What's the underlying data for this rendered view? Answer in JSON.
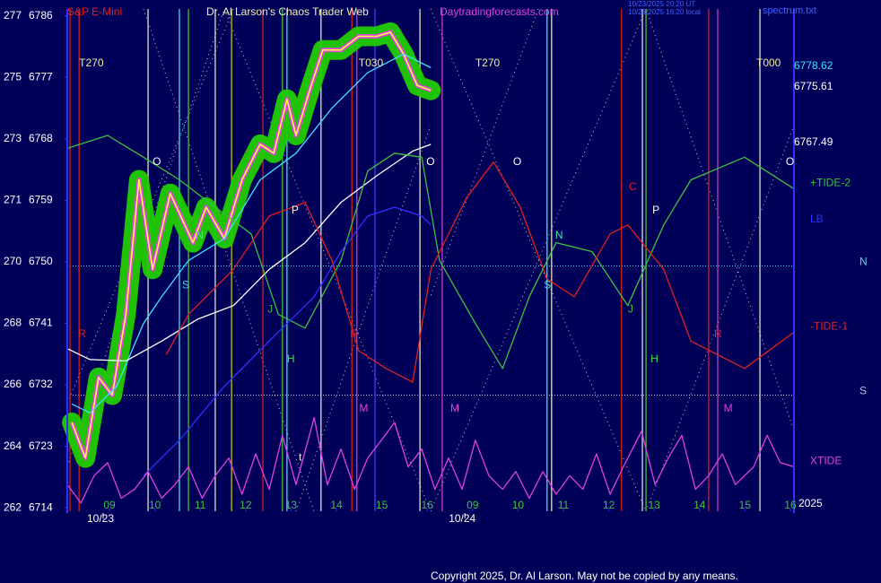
{
  "chart_data": {
    "type": "line",
    "instrument": "S&P E-Mini",
    "title": "Dr. Al Larson's Chaos Trader Web",
    "website": "Daytradingforecasts.com",
    "timestamps": [
      "10/23/2025 20:20 UT",
      "10/23/2025 16:20 local"
    ],
    "file": "spectrum.txt",
    "year": "2025",
    "copyright": "Copyright 2025, Dr. Al Larson. May not be copied by any means.",
    "ylim": [
      6713.5,
      6787
    ],
    "yticks": [
      6714,
      6723,
      6732,
      6741,
      6750,
      6759,
      6768,
      6777,
      6786
    ],
    "y_alt_labels": [
      "262",
      "264",
      "266",
      "268",
      "270",
      "271",
      "273",
      "275",
      "277"
    ],
    "xlim": [
      -9.3,
      150.8
    ],
    "xticks": [
      {
        "value": 0,
        "label": "09"
      },
      {
        "value": 10,
        "label": "10"
      },
      {
        "value": 20,
        "label": "11"
      },
      {
        "value": 30,
        "label": "12"
      },
      {
        "value": 40,
        "label": "13"
      },
      {
        "value": 50,
        "label": "14"
      },
      {
        "value": 60,
        "label": "15"
      },
      {
        "value": 70,
        "label": "16"
      },
      {
        "value": 80,
        "label": "09"
      },
      {
        "value": 90,
        "label": "10"
      },
      {
        "value": 100,
        "label": "11"
      },
      {
        "value": 110,
        "label": "12"
      },
      {
        "value": 120,
        "label": "13"
      },
      {
        "value": 130,
        "label": "14"
      },
      {
        "value": 140,
        "label": "15"
      },
      {
        "value": 150,
        "label": "16"
      }
    ],
    "date_labels": [
      {
        "text": "10/23",
        "x": -1.4
      },
      {
        "text": "10/24",
        "x": 78.3
      }
    ],
    "series": [
      {
        "color": "#ffff40",
        "glow": "#22cc00",
        "x": [
          -8.3,
          -5.3,
          -2.4,
          0.6,
          3.6,
          6.5,
          9.5,
          13.4,
          18.4,
          21.3,
          25.3,
          29.2,
          33.2,
          36.2,
          39.1,
          41.1,
          44.1,
          47.0,
          51.0,
          54.9,
          58.9,
          61.9,
          64.8,
          67.8,
          70.8
        ],
        "values": [
          6726.5,
          6721.3,
          6733.1,
          6730.5,
          6742.3,
          6762.0,
          6748.9,
          6760.0,
          6752.8,
          6758.0,
          6753.4,
          6762.0,
          6767.2,
          6765.9,
          6773.8,
          6768.5,
          6775.1,
          6781.0,
          6781.0,
          6783.0,
          6783.0,
          6783.6,
          6780.4,
          6775.8,
          6775.1
        ]
      },
      {
        "color": "#40e0ff",
        "x": [
          -8.3,
          -4.3,
          1.6,
          7.5,
          11.5,
          17.4,
          25.3,
          33.2,
          41.1,
          49.0,
          56.9,
          64.8,
          70.8
        ],
        "values": [
          6729.2,
          6727.9,
          6731.8,
          6741.0,
          6744.9,
          6750.2,
          6753.4,
          6762.0,
          6765.9,
          6772.5,
          6777.7,
          6780.4,
          6778.4
        ]
      },
      {
        "color": "#ffffff",
        "x": [
          -9.3,
          -4.3,
          3.6,
          11.5,
          19.4,
          27.3,
          35.2,
          43.1,
          51.0,
          58.9,
          66.8,
          70.8
        ],
        "values": [
          6737.3,
          6735.7,
          6735.5,
          6738.4,
          6741.6,
          6743.6,
          6748.9,
          6752.8,
          6758.7,
          6762.6,
          6766.2,
          6767.2
        ]
      },
      {
        "name": "+TIDE-2",
        "color": "#40c040",
        "x": [
          -9.3,
          -0.4,
          7.5,
          15.4,
          23.3,
          31.2,
          37.2,
          43.1,
          51.0,
          56.9,
          62.8,
          68.8,
          72.7,
          80.6,
          86.6,
          92.5,
          98.4,
          106.3,
          114.2,
          122.1,
          128.1,
          139.9,
          150.8
        ],
        "values": [
          6766.6,
          6768.5,
          6765.3,
          6762.0,
          6758.0,
          6754.1,
          6742.3,
          6740.3,
          6750.2,
          6763.3,
          6765.9,
          6765.3,
          6750.2,
          6741.0,
          6734.4,
          6744.9,
          6752.8,
          6751.5,
          6743.6,
          6755.4,
          6762.0,
          6765.3,
          6760.7
        ]
      },
      {
        "name": "LB",
        "color": "#3030ff",
        "x": [
          7.5,
          15.4,
          25.3,
          35.2,
          45.1,
          51.0,
          56.9,
          62.8,
          68.8,
          70.8
        ],
        "values": [
          6718.7,
          6723.9,
          6731.8,
          6738.4,
          6744.9,
          6751.5,
          6756.7,
          6758.0,
          6756.7,
          6755.4
        ]
      },
      {
        "name": "-TIDE-1",
        "color": "#e02020",
        "x": [
          12.5,
          17.4,
          27.3,
          35.2,
          43.1,
          49.0,
          54.9,
          60.9,
          66.8,
          70.8,
          78.7,
          84.6,
          90.5,
          96.4,
          102.4,
          110.3,
          114.2,
          122.1,
          128.1,
          134.0,
          139.9,
          150.8
        ],
        "values": [
          6736.4,
          6742.3,
          6748.9,
          6756.7,
          6758.7,
          6750.2,
          6737.0,
          6734.4,
          6732.4,
          6748.9,
          6759.4,
          6764.6,
          6758.0,
          6747.5,
          6744.9,
          6754.1,
          6755.4,
          6748.9,
          6738.4,
          6736.4,
          6734.4,
          6739.7
        ]
      },
      {
        "name": "XTIDE",
        "color": "#e040e0",
        "x": [
          -9.3,
          -6.3,
          -3.4,
          -0.4,
          2.6,
          5.5,
          8.5,
          11.5,
          14.4,
          17.4,
          20.4,
          23.3,
          26.3,
          29.2,
          32.2,
          35.2,
          38.1,
          41.1,
          45.1,
          48.0,
          51.0,
          54.0,
          56.9,
          59.9,
          62.8,
          65.8,
          68.8,
          71.7,
          74.7,
          77.7,
          80.6,
          83.6,
          86.6,
          89.5,
          92.5,
          95.5,
          98.4,
          101.4,
          104.3,
          107.3,
          110.3,
          113.2,
          117.2,
          120.2,
          123.1,
          126.1,
          129.1,
          132.0,
          135.0,
          137.9,
          141.9,
          144.9,
          147.8,
          150.8
        ],
        "values": [
          6717.4,
          6714.7,
          6718.7,
          6720.6,
          6715.4,
          6716.7,
          6719.3,
          6715.4,
          6717.4,
          6720.0,
          6715.4,
          6718.7,
          6721.3,
          6716.0,
          6721.9,
          6716.7,
          6724.6,
          6717.4,
          6727.2,
          6717.4,
          6722.6,
          6716.7,
          6721.3,
          6723.9,
          6726.5,
          6720.0,
          6722.6,
          6716.7,
          6721.3,
          6716.7,
          6723.9,
          6718.7,
          6716.7,
          6719.3,
          6715.4,
          6719.3,
          6716.0,
          6718.7,
          6716.7,
          6721.9,
          6716.0,
          6720.0,
          6725.2,
          6717.4,
          6721.3,
          6724.6,
          6716.7,
          6718.7,
          6721.9,
          6717.4,
          6720.0,
          6724.6,
          6720.6,
          6720.0
        ]
      }
    ],
    "hlines": [
      {
        "name": "N",
        "value": 6749.4,
        "color": "#40e0e0"
      },
      {
        "name": "S",
        "value": 6730.5,
        "color": "#c0c0e0"
      }
    ],
    "last_values": [
      {
        "value": 6778.62,
        "color": "#40e0ff"
      },
      {
        "value": 6775.61,
        "color": "#ffffff"
      },
      {
        "value": 6767.49,
        "color": "#ffffff"
      }
    ],
    "vlines": [
      {
        "x": -8.7,
        "color": "#d02020"
      },
      {
        "x": -6.7,
        "color": "#d02020"
      },
      {
        "x": 8.5,
        "color": "#e0e0c0"
      },
      {
        "x": 15.4,
        "color": "#40e0e0"
      },
      {
        "x": 17.4,
        "color": "#40c040"
      },
      {
        "x": 23.3,
        "color": "#e0e0c0"
      },
      {
        "x": 26.9,
        "color": "#c0c000"
      },
      {
        "x": 33.8,
        "color": "#d02020"
      },
      {
        "x": 38.1,
        "color": "#40c040"
      },
      {
        "x": 39.1,
        "color": "#40e0e0"
      },
      {
        "x": 46.6,
        "color": "#e0e0c0"
      },
      {
        "x": 53.4,
        "color": "#d02020"
      },
      {
        "x": 54.5,
        "color": "#c040c0"
      },
      {
        "x": 58.5,
        "color": "#4040ff"
      },
      {
        "x": 68.4,
        "color": "#e0e0c0"
      },
      {
        "x": 73.3,
        "color": "#c040c0"
      },
      {
        "x": 96.4,
        "color": "#40e0e0"
      },
      {
        "x": 97.4,
        "color": "#e0e0c0"
      },
      {
        "x": 112.8,
        "color": "#d02020"
      },
      {
        "x": 117.4,
        "color": "#e0e0c0"
      },
      {
        "x": 118.2,
        "color": "#40c040"
      },
      {
        "x": 132.0,
        "color": "#d02020"
      },
      {
        "x": 134.0,
        "color": "#c040c0"
      },
      {
        "x": 143.3,
        "color": "#e0e0c0"
      }
    ],
    "annotations": [
      {
        "text": "T270",
        "x": -6.7,
        "y": 6779.0,
        "color": "#f0f0a0"
      },
      {
        "text": "T030",
        "x": 54.9,
        "y": 6779.0,
        "color": "#f0f0a0"
      },
      {
        "text": "T270",
        "x": 80.6,
        "y": 6779.0,
        "color": "#f0f0a0"
      },
      {
        "text": "T000",
        "x": 142.5,
        "y": 6779.0,
        "color": "#f0f0a0"
      },
      {
        "text": "O",
        "x": 9.5,
        "y": 6764.6,
        "color": "#ffffff"
      },
      {
        "text": "O",
        "x": 69.8,
        "y": 6764.6,
        "color": "#ffffff"
      },
      {
        "text": "O",
        "x": 88.9,
        "y": 6764.6,
        "color": "#ffffff"
      },
      {
        "text": "O",
        "x": 149.0,
        "y": 6764.6,
        "color": "#ffffff"
      },
      {
        "text": "P",
        "x": 40.1,
        "y": 6757.5,
        "color": "#ffffff"
      },
      {
        "text": "P",
        "x": 119.6,
        "y": 6757.5,
        "color": "#ffffff"
      },
      {
        "text": "N",
        "x": 19.0,
        "y": 6753.8,
        "color": "#40e0c0"
      },
      {
        "text": "N",
        "x": 98.2,
        "y": 6753.8,
        "color": "#40e0c0"
      },
      {
        "text": "S",
        "x": 16.0,
        "y": 6746.5,
        "color": "#40d0e0"
      },
      {
        "text": "S",
        "x": 95.7,
        "y": 6746.5,
        "color": "#40d0e0"
      },
      {
        "text": "J",
        "x": 34.8,
        "y": 6743.0,
        "color": "#40c040"
      },
      {
        "text": "J",
        "x": 114.2,
        "y": 6743.0,
        "color": "#40c040"
      },
      {
        "text": "H",
        "x": 39.1,
        "y": 6735.7,
        "color": "#40e040"
      },
      {
        "text": "H",
        "x": 119.2,
        "y": 6735.7,
        "color": "#40e040"
      },
      {
        "text": "R",
        "x": -6.9,
        "y": 6739.4,
        "color": "#e02020"
      },
      {
        "text": "R",
        "x": 53.0,
        "y": 6739.4,
        "color": "#e02020"
      },
      {
        "text": "R",
        "x": 133.2,
        "y": 6739.4,
        "color": "#e02020"
      },
      {
        "text": "M",
        "x": 55.0,
        "y": 6728.5,
        "color": "#e040e0"
      },
      {
        "text": "M",
        "x": 75.1,
        "y": 6728.5,
        "color": "#e040e0"
      },
      {
        "text": "M",
        "x": 135.3,
        "y": 6728.5,
        "color": "#e040e0"
      },
      {
        "text": "C",
        "x": 114.4,
        "y": 6760.9,
        "color": "#e02020"
      },
      {
        "text": "t",
        "x": 41.7,
        "y": 6721.3,
        "color": "#ffffff"
      }
    ]
  }
}
